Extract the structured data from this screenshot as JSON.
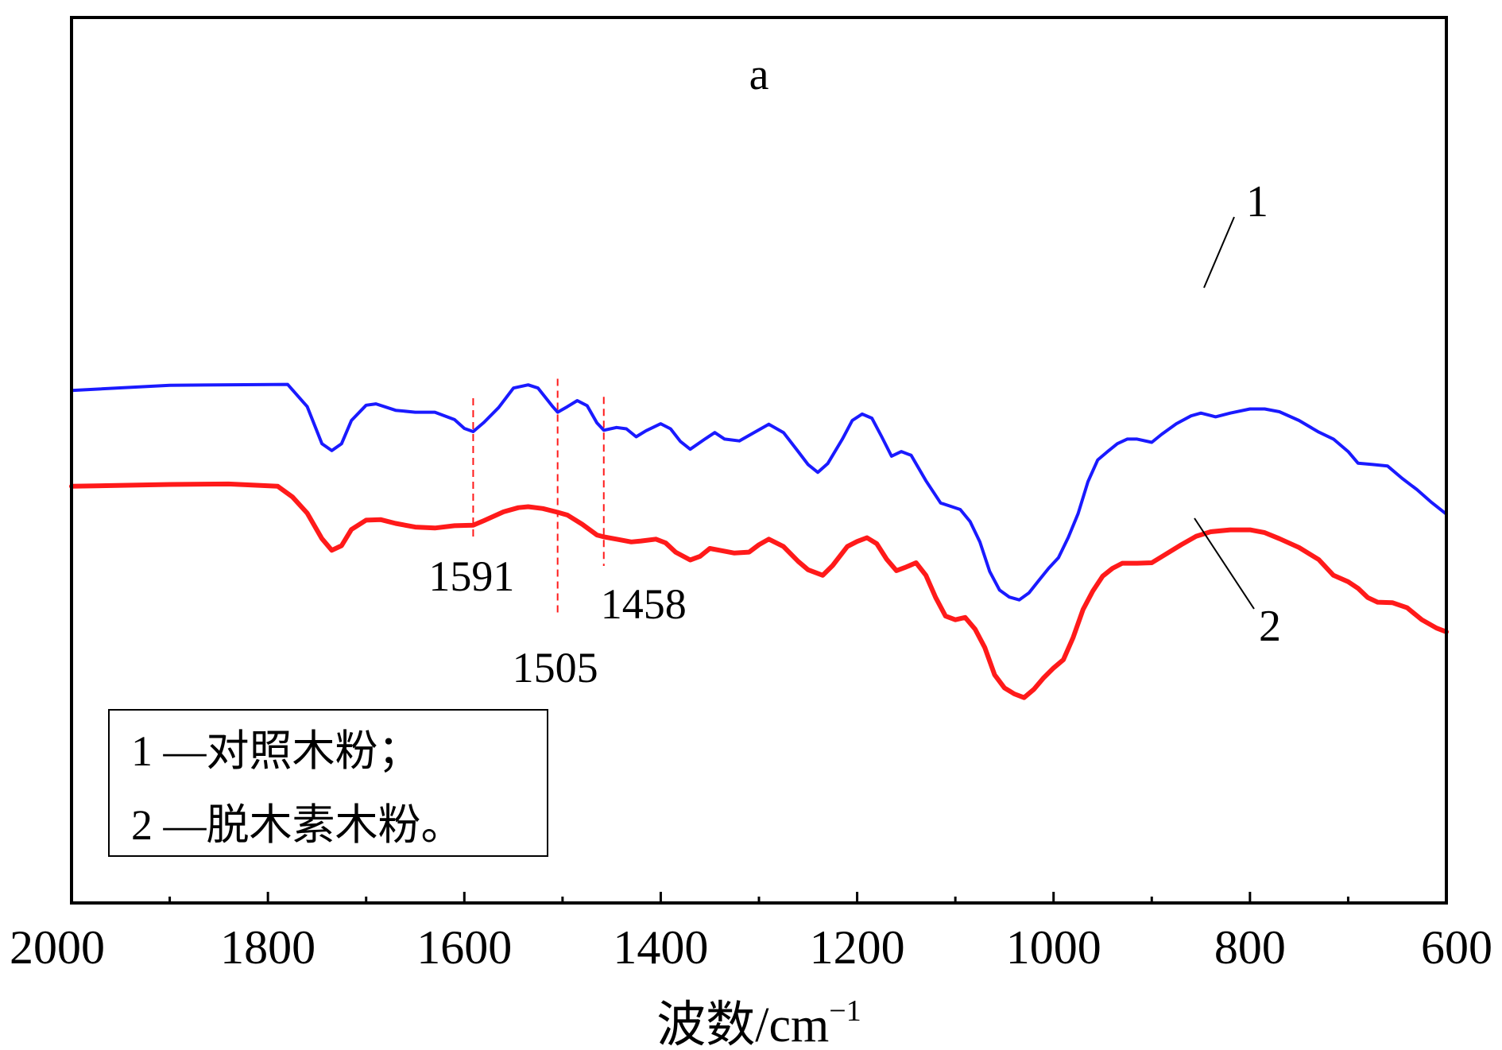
{
  "chart_data": {
    "type": "line",
    "title": "a",
    "xlabel": "波数/cm",
    "xlabel_superscript": "−1",
    "ylabel": "",
    "xlim": [
      2000,
      600
    ],
    "x_reversed": true,
    "x_ticks": [
      2000,
      1800,
      1600,
      1400,
      1200,
      1000,
      800,
      600
    ],
    "x_minor_ticks": [
      1900,
      1700,
      1500,
      1300,
      1100,
      900,
      700
    ],
    "y_ticks_visible": false,
    "grid": false,
    "ylim": [
      0,
      100
    ],
    "series": [
      {
        "name": "1",
        "color": "#1a1aff",
        "points": [
          [
            2000,
            71.5
          ],
          [
            1900,
            72.6
          ],
          [
            1780,
            72.8
          ],
          [
            1760,
            68
          ],
          [
            1745,
            60
          ],
          [
            1735,
            58.5
          ],
          [
            1725,
            60
          ],
          [
            1715,
            65
          ],
          [
            1700,
            68.3
          ],
          [
            1690,
            68.6
          ],
          [
            1670,
            67.2
          ],
          [
            1650,
            66.8
          ],
          [
            1630,
            66.8
          ],
          [
            1610,
            65.2
          ],
          [
            1600,
            63.3
          ],
          [
            1591,
            62.6
          ],
          [
            1580,
            64.6
          ],
          [
            1565,
            67.8
          ],
          [
            1550,
            72
          ],
          [
            1535,
            72.7
          ],
          [
            1525,
            72
          ],
          [
            1510,
            68
          ],
          [
            1505,
            66.8
          ],
          [
            1495,
            68
          ],
          [
            1485,
            69.3
          ],
          [
            1475,
            68.2
          ],
          [
            1465,
            64.5
          ],
          [
            1458,
            62.9
          ],
          [
            1445,
            63.5
          ],
          [
            1435,
            63.2
          ],
          [
            1425,
            61.5
          ],
          [
            1415,
            62.8
          ],
          [
            1400,
            64.3
          ],
          [
            1390,
            63.2
          ],
          [
            1380,
            60.5
          ],
          [
            1370,
            58.8
          ],
          [
            1355,
            61
          ],
          [
            1345,
            62.4
          ],
          [
            1335,
            61
          ],
          [
            1320,
            60.6
          ],
          [
            1305,
            62.4
          ],
          [
            1290,
            64.2
          ],
          [
            1275,
            62.4
          ],
          [
            1260,
            58.3
          ],
          [
            1250,
            55.5
          ],
          [
            1240,
            53.8
          ],
          [
            1230,
            55.7
          ],
          [
            1215,
            61
          ],
          [
            1205,
            65
          ],
          [
            1195,
            66.4
          ],
          [
            1185,
            65.5
          ],
          [
            1175,
            61.5
          ],
          [
            1165,
            57.3
          ],
          [
            1155,
            58.3
          ],
          [
            1145,
            57.5
          ],
          [
            1130,
            52
          ],
          [
            1115,
            47.2
          ],
          [
            1105,
            46.5
          ],
          [
            1095,
            45.8
          ],
          [
            1085,
            43.2
          ],
          [
            1075,
            38.8
          ],
          [
            1065,
            32.4
          ],
          [
            1055,
            28.4
          ],
          [
            1045,
            26.9
          ],
          [
            1035,
            26.3
          ],
          [
            1025,
            27.8
          ],
          [
            1015,
            30.5
          ],
          [
            1005,
            33.1
          ],
          [
            995,
            35.4
          ],
          [
            985,
            39.8
          ],
          [
            975,
            44.9
          ],
          [
            965,
            51.8
          ],
          [
            955,
            56.5
          ],
          [
            945,
            58.3
          ],
          [
            935,
            60
          ],
          [
            925,
            61
          ],
          [
            915,
            61
          ],
          [
            900,
            60.3
          ],
          [
            890,
            62
          ],
          [
            875,
            64.3
          ],
          [
            860,
            66
          ],
          [
            850,
            66.6
          ],
          [
            835,
            65.8
          ],
          [
            820,
            66.6
          ],
          [
            800,
            67.5
          ],
          [
            785,
            67.5
          ],
          [
            770,
            66.9
          ],
          [
            750,
            65
          ],
          [
            730,
            62.5
          ],
          [
            715,
            61
          ],
          [
            700,
            58.3
          ],
          [
            690,
            55.8
          ],
          [
            675,
            55.5
          ],
          [
            660,
            55.2
          ],
          [
            645,
            52.5
          ],
          [
            630,
            50.1
          ],
          [
            615,
            47.3
          ],
          [
            600,
            44.8
          ]
        ]
      },
      {
        "name": "2",
        "color": "#ff1a1a",
        "points": [
          [
            2000,
            50.8
          ],
          [
            1900,
            51.2
          ],
          [
            1840,
            51.3
          ],
          [
            1790,
            50.8
          ],
          [
            1775,
            48.5
          ],
          [
            1760,
            45
          ],
          [
            1745,
            39.5
          ],
          [
            1735,
            37
          ],
          [
            1725,
            38
          ],
          [
            1715,
            41.5
          ],
          [
            1700,
            43.5
          ],
          [
            1685,
            43.6
          ],
          [
            1670,
            42.8
          ],
          [
            1650,
            42
          ],
          [
            1630,
            41.8
          ],
          [
            1610,
            42.3
          ],
          [
            1591,
            42.4
          ],
          [
            1580,
            43.4
          ],
          [
            1560,
            45.3
          ],
          [
            1545,
            46.2
          ],
          [
            1535,
            46.4
          ],
          [
            1520,
            46
          ],
          [
            1505,
            45.2
          ],
          [
            1495,
            44.6
          ],
          [
            1480,
            42.6
          ],
          [
            1465,
            40.3
          ],
          [
            1458,
            39.9
          ],
          [
            1445,
            39.4
          ],
          [
            1430,
            38.8
          ],
          [
            1420,
            39
          ],
          [
            1405,
            39.4
          ],
          [
            1395,
            38.6
          ],
          [
            1385,
            36.6
          ],
          [
            1370,
            34.9
          ],
          [
            1360,
            35.7
          ],
          [
            1350,
            37.4
          ],
          [
            1340,
            37
          ],
          [
            1325,
            36.4
          ],
          [
            1310,
            36.6
          ],
          [
            1300,
            38.2
          ],
          [
            1290,
            39.4
          ],
          [
            1275,
            37.8
          ],
          [
            1260,
            34.6
          ],
          [
            1250,
            32.8
          ],
          [
            1235,
            31.6
          ],
          [
            1225,
            33.7
          ],
          [
            1210,
            37.8
          ],
          [
            1200,
            38.9
          ],
          [
            1190,
            39.7
          ],
          [
            1180,
            38.4
          ],
          [
            1170,
            35.1
          ],
          [
            1160,
            32.6
          ],
          [
            1150,
            33.4
          ],
          [
            1140,
            34.3
          ],
          [
            1130,
            31.6
          ],
          [
            1120,
            26.8
          ],
          [
            1110,
            22.8
          ],
          [
            1100,
            22
          ],
          [
            1090,
            22.5
          ],
          [
            1080,
            20
          ],
          [
            1070,
            16
          ],
          [
            1060,
            10.1
          ],
          [
            1050,
            7.3
          ],
          [
            1040,
            6
          ],
          [
            1030,
            5.2
          ],
          [
            1020,
            7
          ],
          [
            1010,
            9.5
          ],
          [
            1000,
            11.6
          ],
          [
            990,
            13.4
          ],
          [
            980,
            18.2
          ],
          [
            970,
            24.2
          ],
          [
            960,
            28.2
          ],
          [
            950,
            31.4
          ],
          [
            940,
            33.1
          ],
          [
            930,
            34.2
          ],
          [
            915,
            34.2
          ],
          [
            900,
            34.3
          ],
          [
            890,
            35.6
          ],
          [
            870,
            38.2
          ],
          [
            855,
            40
          ],
          [
            840,
            41
          ],
          [
            820,
            41.4
          ],
          [
            800,
            41.4
          ],
          [
            785,
            40.8
          ],
          [
            770,
            39.5
          ],
          [
            750,
            37.6
          ],
          [
            730,
            35
          ],
          [
            715,
            31.6
          ],
          [
            700,
            30.2
          ],
          [
            690,
            28.8
          ],
          [
            680,
            26.8
          ],
          [
            670,
            25.8
          ],
          [
            655,
            25.7
          ],
          [
            640,
            24.6
          ],
          [
            625,
            22
          ],
          [
            610,
            20.2
          ],
          [
            600,
            19.4
          ]
        ]
      }
    ],
    "peak_markers": [
      {
        "x": 1591,
        "label": "1591"
      },
      {
        "x": 1505,
        "label": "1505"
      },
      {
        "x": 1458,
        "label": "1458"
      }
    ],
    "peak_marker_color": "#ff1a1a",
    "curve_labels": [
      "1",
      "2"
    ],
    "legend": {
      "position": "bottom-left",
      "lines": [
        "1 —对照木粉；",
        "2 —脱木素木粉。"
      ]
    }
  }
}
